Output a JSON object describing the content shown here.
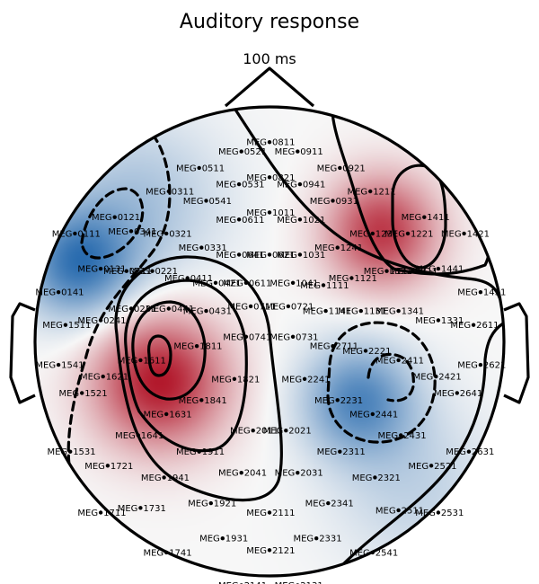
{
  "chart_data": {
    "type": "heatmap",
    "title": "Auditory response",
    "subtitle": "100 ms",
    "colormap": {
      "negative": "#2166ac",
      "zero": "#f7f7f7",
      "positive": "#b2182b"
    },
    "field": {
      "description_units": "normalized topographic amplitude",
      "sources": [
        {
          "x": -0.47,
          "y": -0.17,
          "amp": 1.0,
          "sigma": 0.2
        },
        {
          "x": 0.48,
          "y": 0.47,
          "amp": 0.85,
          "sigma": 0.17
        },
        {
          "x": -0.82,
          "y": 0.33,
          "amp": -0.85,
          "sigma": 0.17
        },
        {
          "x": 0.38,
          "y": -0.25,
          "amp": -0.75,
          "sigma": 0.17
        },
        {
          "x": -0.55,
          "y": 0.6,
          "amp": -0.35,
          "sigma": 0.25
        },
        {
          "x": 0.62,
          "y": -0.62,
          "amp": -0.25,
          "sigma": 0.25
        }
      ]
    },
    "sensors": [
      {
        "name": "MEG 0811",
        "x": 0.0,
        "y": 0.85
      },
      {
        "name": "MEG 0521",
        "x": -0.12,
        "y": 0.81
      },
      {
        "name": "MEG 0911",
        "x": 0.12,
        "y": 0.81
      },
      {
        "name": "MEG 0511",
        "x": -0.3,
        "y": 0.74
      },
      {
        "name": "MEG 0921",
        "x": 0.3,
        "y": 0.74
      },
      {
        "name": "MEG 0821",
        "x": 0.0,
        "y": 0.7
      },
      {
        "name": "MEG 0531",
        "x": -0.13,
        "y": 0.67
      },
      {
        "name": "MEG 0941",
        "x": 0.13,
        "y": 0.67
      },
      {
        "name": "MEG 0311",
        "x": -0.43,
        "y": 0.64
      },
      {
        "name": "MEG 1211",
        "x": 0.43,
        "y": 0.64
      },
      {
        "name": "MEG 0541",
        "x": -0.27,
        "y": 0.6
      },
      {
        "name": "MEG 0931",
        "x": 0.27,
        "y": 0.6
      },
      {
        "name": "MEG 0121",
        "x": -0.66,
        "y": 0.53
      },
      {
        "name": "MEG 1411",
        "x": 0.66,
        "y": 0.53
      },
      {
        "name": "MEG 1011",
        "x": 0.0,
        "y": 0.55
      },
      {
        "name": "MEG 0611",
        "x": -0.13,
        "y": 0.52
      },
      {
        "name": "MEG 1021",
        "x": 0.13,
        "y": 0.52
      },
      {
        "name": "MEG 0111",
        "x": -0.83,
        "y": 0.46
      },
      {
        "name": "MEG 1421",
        "x": 0.83,
        "y": 0.46
      },
      {
        "name": "MEG 0341",
        "x": -0.59,
        "y": 0.47
      },
      {
        "name": "MEG 1221",
        "x": 0.59,
        "y": 0.46
      },
      {
        "name": "MEG 0321",
        "x": -0.44,
        "y": 0.46
      },
      {
        "name": "MEG 1231",
        "x": 0.44,
        "y": 0.46
      },
      {
        "name": "MEG 0331",
        "x": -0.29,
        "y": 0.4
      },
      {
        "name": "MEG 1241",
        "x": 0.29,
        "y": 0.4
      },
      {
        "name": "MEG 0621",
        "x": 0.0,
        "y": 0.37
      },
      {
        "name": "MEG 0641",
        "x": -0.13,
        "y": 0.37
      },
      {
        "name": "MEG 1031",
        "x": 0.13,
        "y": 0.37
      },
      {
        "name": "MEG 0131",
        "x": -0.72,
        "y": 0.31
      },
      {
        "name": "MEG 1441",
        "x": 0.72,
        "y": 0.31
      },
      {
        "name": "MEG 0141",
        "x": -0.9,
        "y": 0.21
      },
      {
        "name": "MEG 1431",
        "x": 0.9,
        "y": 0.21
      },
      {
        "name": "MEG 0211",
        "x": -0.61,
        "y": 0.3
      },
      {
        "name": "MEG 1311",
        "x": 0.61,
        "y": 0.3
      },
      {
        "name": "MEG 0221",
        "x": -0.5,
        "y": 0.3
      },
      {
        "name": "MEG 1321",
        "x": 0.5,
        "y": 0.3
      },
      {
        "name": "MEG 0411",
        "x": -0.35,
        "y": 0.27
      },
      {
        "name": "MEG 1121",
        "x": 0.35,
        "y": 0.27
      },
      {
        "name": "MEG 0421",
        "x": -0.23,
        "y": 0.25
      },
      {
        "name": "MEG 0611",
        "x": -0.1,
        "y": 0.25
      },
      {
        "name": "MEG 1041",
        "x": 0.1,
        "y": 0.25
      },
      {
        "name": "MEG 1111",
        "x": 0.23,
        "y": 0.24
      },
      {
        "name": "MEG 0231",
        "x": -0.59,
        "y": 0.14
      },
      {
        "name": "MEG 0441",
        "x": -0.43,
        "y": 0.14
      },
      {
        "name": "MEG 0431",
        "x": -0.27,
        "y": 0.13
      },
      {
        "name": "MEG 0711",
        "x": -0.08,
        "y": 0.15
      },
      {
        "name": "MEG 0721",
        "x": 0.08,
        "y": 0.15
      },
      {
        "name": "MEG 1141",
        "x": 0.24,
        "y": 0.13
      },
      {
        "name": "MEG 1131",
        "x": 0.39,
        "y": 0.13
      },
      {
        "name": "MEG 1341",
        "x": 0.55,
        "y": 0.13
      },
      {
        "name": "MEG 0241",
        "x": -0.72,
        "y": 0.09
      },
      {
        "name": "MEG 1331",
        "x": 0.72,
        "y": 0.09
      },
      {
        "name": "MEG 1511",
        "x": -0.87,
        "y": 0.07
      },
      {
        "name": "MEG 2611",
        "x": 0.87,
        "y": 0.07
      },
      {
        "name": "MEG 1811",
        "x": -0.31,
        "y": -0.02
      },
      {
        "name": "MEG 0741",
        "x": -0.1,
        "y": 0.02
      },
      {
        "name": "MEG 0731",
        "x": 0.1,
        "y": 0.02
      },
      {
        "name": "MEG 2711",
        "x": 0.27,
        "y": -0.02
      },
      {
        "name": "MEG 2221",
        "x": 0.41,
        "y": -0.04
      },
      {
        "name": "MEG 1611",
        "x": -0.55,
        "y": -0.08
      },
      {
        "name": "MEG 2411",
        "x": 0.55,
        "y": -0.08
      },
      {
        "name": "MEG 1541",
        "x": -0.9,
        "y": -0.1
      },
      {
        "name": "MEG 2621",
        "x": 0.9,
        "y": -0.1
      },
      {
        "name": "MEG 1621",
        "x": -0.71,
        "y": -0.15
      },
      {
        "name": "MEG 2421",
        "x": 0.71,
        "y": -0.15
      },
      {
        "name": "MEG 1821",
        "x": -0.15,
        "y": -0.16
      },
      {
        "name": "MEG 2241",
        "x": 0.15,
        "y": -0.16
      },
      {
        "name": "MEG 1521",
        "x": -0.8,
        "y": -0.22
      },
      {
        "name": "MEG 2641",
        "x": 0.8,
        "y": -0.22
      },
      {
        "name": "MEG 1841",
        "x": -0.29,
        "y": -0.25
      },
      {
        "name": "MEG 2231",
        "x": 0.29,
        "y": -0.25
      },
      {
        "name": "MEG 1631",
        "x": -0.44,
        "y": -0.31
      },
      {
        "name": "MEG 2441",
        "x": 0.44,
        "y": -0.31
      },
      {
        "name": "MEG 2011",
        "x": -0.07,
        "y": -0.38
      },
      {
        "name": "MEG 2021",
        "x": 0.07,
        "y": -0.38
      },
      {
        "name": "MEG 1641",
        "x": -0.56,
        "y": -0.4
      },
      {
        "name": "MEG 2431",
        "x": 0.56,
        "y": -0.4
      },
      {
        "name": "MEG 1911",
        "x": -0.3,
        "y": -0.47
      },
      {
        "name": "MEG 2311",
        "x": 0.3,
        "y": -0.47
      },
      {
        "name": "MEG 1531",
        "x": -0.85,
        "y": -0.47
      },
      {
        "name": "MEG 2631",
        "x": 0.85,
        "y": -0.47
      },
      {
        "name": "MEG 1721",
        "x": -0.69,
        "y": -0.53
      },
      {
        "name": "MEG 2521",
        "x": 0.69,
        "y": -0.53
      },
      {
        "name": "MEG 2041",
        "x": -0.12,
        "y": -0.56
      },
      {
        "name": "MEG 2031",
        "x": 0.12,
        "y": -0.56
      },
      {
        "name": "MEG 1941",
        "x": -0.45,
        "y": -0.58
      },
      {
        "name": "MEG 2321",
        "x": 0.45,
        "y": -0.58
      },
      {
        "name": "MEG 1921",
        "x": -0.25,
        "y": -0.69
      },
      {
        "name": "MEG 2341",
        "x": 0.25,
        "y": -0.69
      },
      {
        "name": "MEG 1731",
        "x": -0.55,
        "y": -0.71
      },
      {
        "name": "MEG 2511",
        "x": 0.55,
        "y": -0.72
      },
      {
        "name": "MEG 1711",
        "x": -0.72,
        "y": -0.73
      },
      {
        "name": "MEG 2531",
        "x": 0.72,
        "y": -0.73
      },
      {
        "name": "MEG 2111",
        "x": 0.0,
        "y": -0.73
      },
      {
        "name": "MEG 1931",
        "x": -0.2,
        "y": -0.84
      },
      {
        "name": "MEG 2331",
        "x": 0.2,
        "y": -0.84
      },
      {
        "name": "MEG 2121",
        "x": 0.0,
        "y": -0.89
      },
      {
        "name": "MEG 1741",
        "x": -0.44,
        "y": -0.9
      },
      {
        "name": "MEG 2541",
        "x": 0.44,
        "y": -0.9
      },
      {
        "name": "MEG 2141",
        "x": -0.12,
        "y": -1.04
      },
      {
        "name": "MEG 2131",
        "x": 0.12,
        "y": -1.04
      }
    ]
  }
}
